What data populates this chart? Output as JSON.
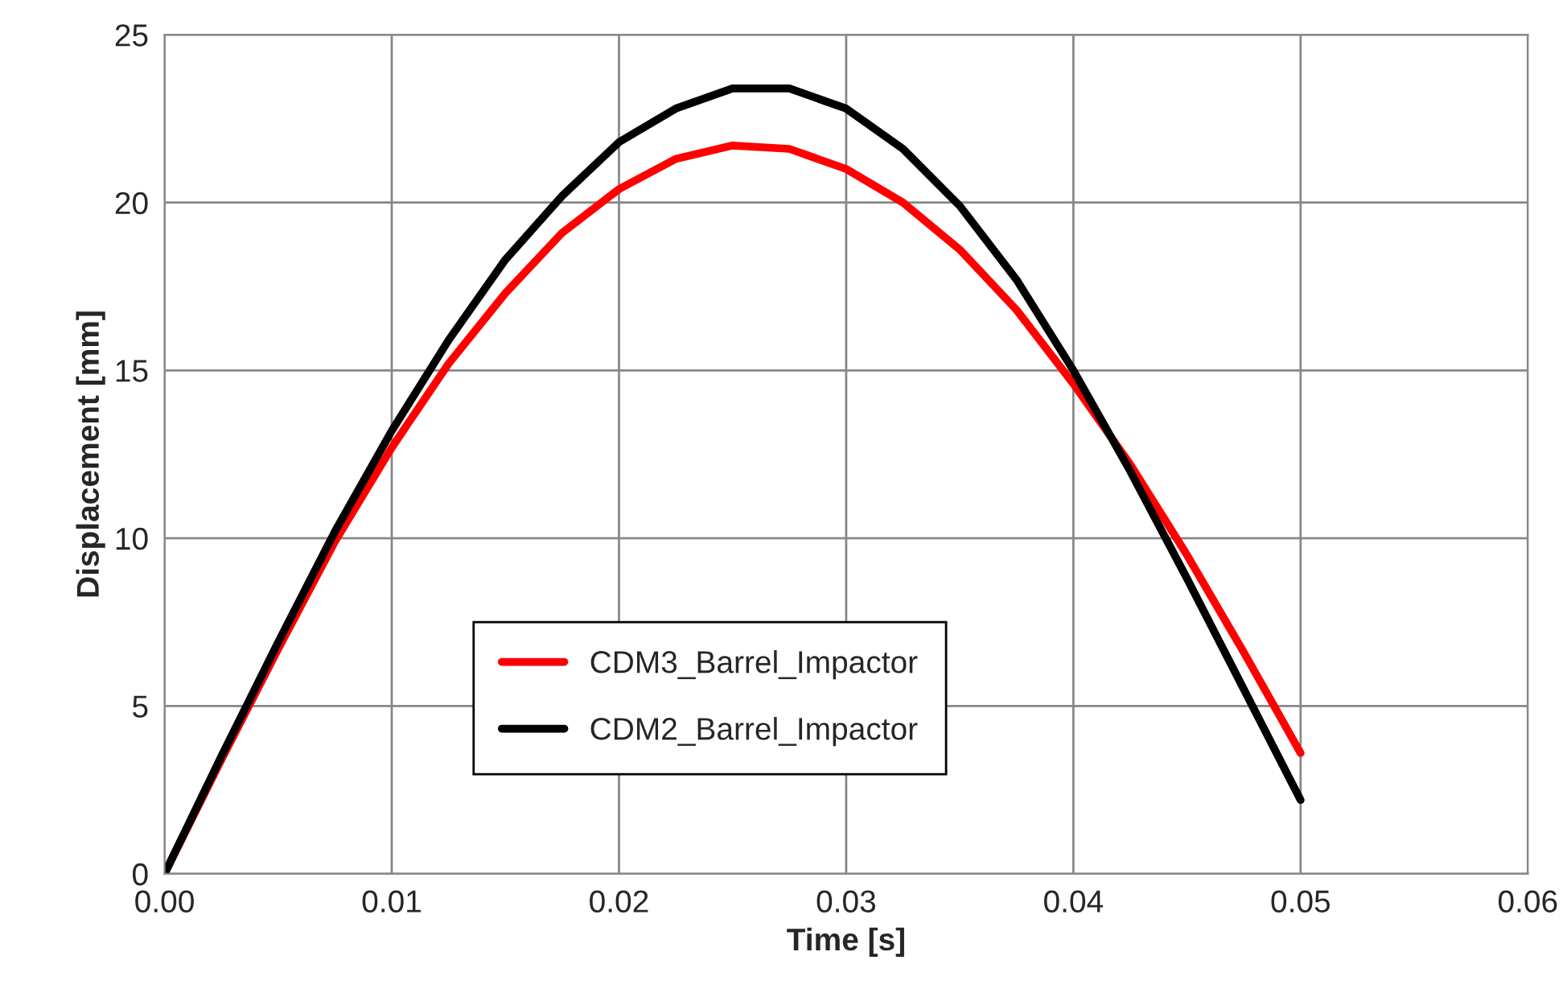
{
  "chart_data": {
    "type": "line",
    "xlabel": "Time [s]",
    "ylabel": "Displacement [mm]",
    "x": [
      0,
      0.0025,
      0.005,
      0.0075,
      0.01,
      0.0125,
      0.015,
      0.0175,
      0.02,
      0.0225,
      0.025,
      0.0275,
      0.03,
      0.0325,
      0.035,
      0.0375,
      0.04,
      0.0425,
      0.045,
      0.0475,
      0.05
    ],
    "series": [
      {
        "name": "CDM3_Barrel_Impactor",
        "color": "#ff0000",
        "values": [
          0,
          3.4,
          6.7,
          9.9,
          12.7,
          15.2,
          17.3,
          19.1,
          20.4,
          21.3,
          21.7,
          21.6,
          21.0,
          20.0,
          18.6,
          16.8,
          14.6,
          12.2,
          9.5,
          6.6,
          3.6
        ]
      },
      {
        "name": "CDM2_Barrel_Impactor",
        "color": "#000000",
        "values": [
          0,
          3.5,
          6.9,
          10.2,
          13.2,
          15.9,
          18.3,
          20.2,
          21.8,
          22.8,
          23.4,
          23.4,
          22.8,
          21.6,
          19.9,
          17.7,
          15.0,
          12.0,
          8.8,
          5.5,
          2.2
        ]
      }
    ],
    "xlim": [
      0,
      0.06
    ],
    "xticks": [
      {
        "value": 0,
        "label": "0.00"
      },
      {
        "value": 0.01,
        "label": "0.01"
      },
      {
        "value": 0.02,
        "label": "0.02"
      },
      {
        "value": 0.03,
        "label": "0.03"
      },
      {
        "value": 0.04,
        "label": "0.04"
      },
      {
        "value": 0.05,
        "label": "0.05"
      },
      {
        "value": 0.06,
        "label": "0.06"
      }
    ],
    "ylim": [
      0,
      25
    ],
    "yticks": [
      0,
      5,
      10,
      15,
      20,
      25
    ],
    "grid": true,
    "legend": "bottom",
    "marker": "none",
    "line_style": "solid"
  }
}
